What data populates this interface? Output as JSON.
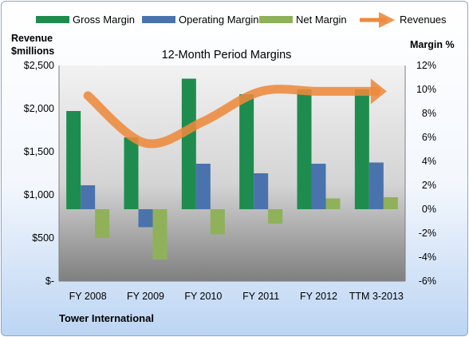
{
  "chart_data": {
    "type": "bar",
    "title": "12-Month Period Margins",
    "footer": "Tower International",
    "categories": [
      "FY 2008",
      "FY 2009",
      "FY 2010",
      "FY 2011",
      "FY 2012",
      "TTM 3-2013"
    ],
    "left_axis": {
      "label_line1": "Revenue",
      "label_line2": "$millions",
      "min": 0,
      "max": 2500,
      "ticks": [
        0,
        500,
        1000,
        1500,
        2000,
        2500
      ],
      "tick_labels": [
        "$-",
        "$500",
        "$1,000",
        "$1,500",
        "$2,000",
        "$2,500"
      ]
    },
    "right_axis": {
      "label": "Margin %",
      "min": -6,
      "max": 12,
      "ticks": [
        -6,
        -4,
        -2,
        0,
        2,
        4,
        6,
        8,
        10,
        12
      ],
      "tick_labels": [
        "-6%",
        "-4%",
        "-2%",
        "0%",
        "2%",
        "4%",
        "6%",
        "8%",
        "10%",
        "12%"
      ]
    },
    "series": [
      {
        "name": "Gross Margin",
        "axis": "right",
        "kind": "bar",
        "color": "#1e8c4e",
        "values": [
          8.2,
          6.0,
          10.9,
          9.6,
          10.0,
          10.0
        ]
      },
      {
        "name": "Operating Margin",
        "axis": "right",
        "kind": "bar",
        "color": "#4a73ad",
        "values": [
          2.0,
          -1.5,
          3.8,
          3.0,
          3.8,
          3.9
        ]
      },
      {
        "name": "Net Margin",
        "axis": "right",
        "kind": "bar",
        "color": "#8fb159",
        "values": [
          -2.4,
          -4.2,
          -2.1,
          -1.2,
          0.9,
          1.0
        ]
      },
      {
        "name": "Revenues",
        "axis": "left",
        "kind": "line",
        "color": "#ed8a3c",
        "values": [
          2150,
          1600,
          1850,
          2200,
          2200,
          2200
        ]
      }
    ],
    "legend_position": "top",
    "grid": false
  }
}
